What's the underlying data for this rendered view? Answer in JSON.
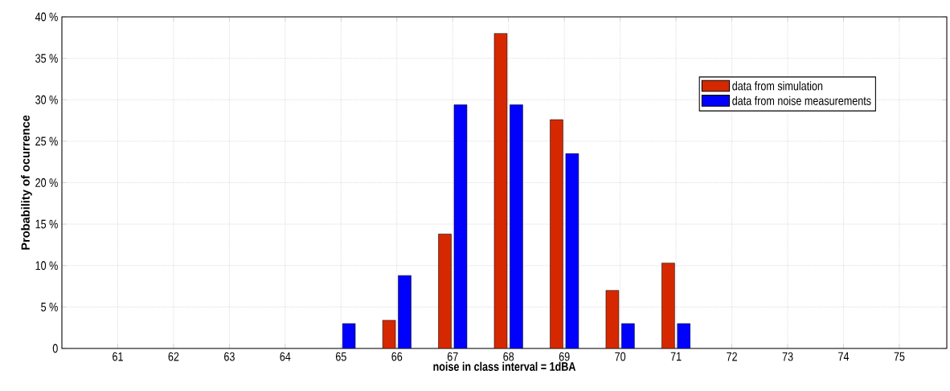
{
  "chart_data": {
    "type": "bar",
    "xlabel": "noise in class interval = 1dBA",
    "ylabel": "Probability of ocurrence",
    "categories": [
      "61",
      "62",
      "63",
      "64",
      "65",
      "66",
      "67",
      "68",
      "69",
      "70",
      "71",
      "72",
      "73",
      "74",
      "75"
    ],
    "series": [
      {
        "name": "data from simulation",
        "color": "#d62800",
        "values": [
          null,
          null,
          null,
          null,
          null,
          3.4,
          13.8,
          38,
          27.6,
          7,
          10.3,
          null,
          null,
          null,
          null
        ]
      },
      {
        "name": "data from noise measurements",
        "color": "#0000ff",
        "values": [
          null,
          null,
          null,
          null,
          3,
          8.8,
          29.4,
          29.4,
          23.5,
          3,
          3,
          null,
          null,
          null,
          null
        ]
      }
    ],
    "ylim": [
      0,
      40
    ],
    "yticks": [
      {
        "value": 0,
        "label": "0"
      },
      {
        "value": 5,
        "label": "5 %"
      },
      {
        "value": 10,
        "label": "10 %"
      },
      {
        "value": 15,
        "label": "15 %"
      },
      {
        "value": 20,
        "label": "20 %"
      },
      {
        "value": 25,
        "label": "25 %"
      },
      {
        "value": 30,
        "label": "30 %"
      },
      {
        "value": 35,
        "label": "35 %"
      },
      {
        "value": 40,
        "label": "40 %"
      }
    ],
    "grid": true,
    "legend": "top right"
  }
}
